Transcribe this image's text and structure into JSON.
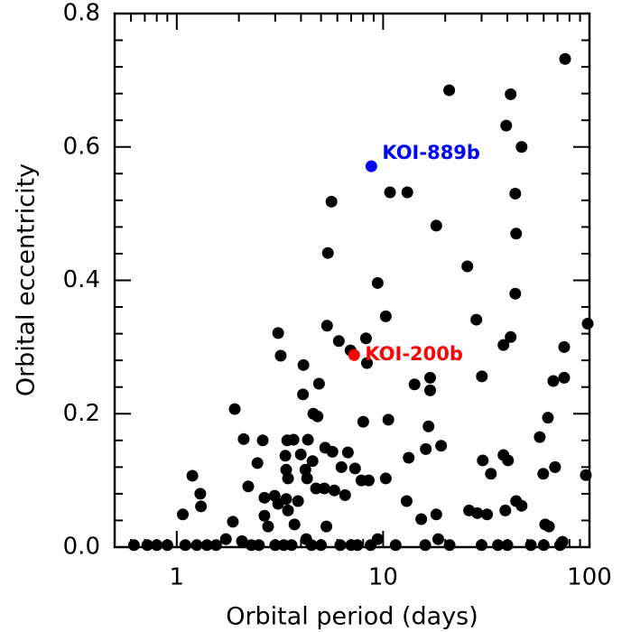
{
  "chart_data": {
    "type": "scatter",
    "xlabel": "Orbital period (days)",
    "ylabel": "Orbital eccentricity",
    "log_x": true,
    "xlim": [
      0.5,
      100
    ],
    "xticks": [
      1,
      10,
      100
    ],
    "ylim": [
      0,
      0.8
    ],
    "yticks": [
      {
        "value": 0,
        "label": "0.0"
      },
      0.2,
      0.4,
      0.6,
      0.8
    ],
    "series": [
      {
        "color": "#000000",
        "x": [
          76.2,
          20.9,
          41.5,
          39.5,
          46.9,
          43.7,
          10.8,
          13.1,
          5.62,
          18.1,
          44.1,
          5.4,
          25.6,
          9.41,
          43.7,
          10.3,
          98,
          28.3,
          3.1,
          5.35,
          41.5,
          38.3,
          8.26,
          6.1,
          6.95,
          8.35,
          3.19,
          75.4,
          30.1,
          75.4,
          16.9,
          16.9,
          14.2,
          66.8,
          4.11,
          4.09,
          4.89,
          4.59,
          4.81,
          1.91,
          8.01,
          10.6,
          62.9,
          16.6,
          57.4,
          16.1,
          19.1,
          2.11,
          2.61,
          3.43,
          3.68,
          4.32,
          5.24,
          5.68,
          6.75,
          6.28,
          7.31,
          3.36,
          3.99,
          4.55,
          4.2,
          3.39,
          3.46,
          4.28,
          4.73,
          5.19,
          5.8,
          6.54,
          7.85,
          8.52,
          1.19,
          1.3,
          1.31,
          1.07,
          2.46,
          2.22,
          1.87,
          2.98,
          2.66,
          3.1,
          2.66,
          2.77,
          3.46,
          3.39,
          3.87,
          3.72,
          5.31,
          4.24,
          2.07,
          1.73,
          10.3,
          13.0,
          15.3,
          18.1,
          18.5,
          13.3,
          30.4,
          38.3,
          40.3,
          33.3,
          59.7,
          68.1,
          96.0,
          31.9,
          26.1,
          28.6,
          44.1,
          39.1,
          46.9,
          61.0,
          63.6,
          9.41,
          74.0,
          0.62,
          0.72,
          0.8,
          0.9,
          1.1,
          1.25,
          1.4,
          1.55,
          2.3,
          2.5,
          3.0,
          3.3,
          3.6,
          4.5,
          5.0,
          6.2,
          7.0,
          7.5,
          8.7,
          11.5,
          16,
          21,
          30,
          36,
          40,
          52,
          60,
          72
        ],
        "values": [
          0.732,
          0.685,
          0.679,
          0.632,
          0.6,
          0.53,
          0.532,
          0.532,
          0.518,
          0.482,
          0.47,
          0.441,
          0.421,
          0.396,
          0.38,
          0.346,
          0.335,
          0.341,
          0.321,
          0.332,
          0.315,
          0.303,
          0.313,
          0.309,
          0.295,
          0.276,
          0.287,
          0.3,
          0.256,
          0.254,
          0.254,
          0.235,
          0.244,
          0.249,
          0.273,
          0.229,
          0.245,
          0.2,
          0.196,
          0.207,
          0.188,
          0.191,
          0.194,
          0.181,
          0.165,
          0.147,
          0.152,
          0.162,
          0.16,
          0.16,
          0.161,
          0.161,
          0.149,
          0.143,
          0.142,
          0.12,
          0.118,
          0.137,
          0.139,
          0.129,
          0.116,
          0.116,
          0.103,
          0.103,
          0.088,
          0.088,
          0.085,
          0.078,
          0.1,
          0.1,
          0.107,
          0.08,
          0.061,
          0.049,
          0.126,
          0.091,
          0.038,
          0.077,
          0.074,
          0.065,
          0.047,
          0.031,
          0.055,
          0.072,
          0.069,
          0.034,
          0.031,
          0.012,
          0.009,
          0.012,
          0.103,
          0.069,
          0.042,
          0.049,
          0.012,
          0.134,
          0.13,
          0.138,
          0.13,
          0.11,
          0.11,
          0.12,
          0.108,
          0.049,
          0.055,
          0.051,
          0.069,
          0.055,
          0.062,
          0.034,
          0.031,
          0.012,
          0.008,
          0.003,
          0.003,
          0.003,
          0.003,
          0.003,
          0.003,
          0.003,
          0.003,
          0.003,
          0.003,
          0.003,
          0.003,
          0.003,
          0.003,
          0.003,
          0.003,
          0.003,
          0.003,
          0.003,
          0.003,
          0.003,
          0.003,
          0.003,
          0.003,
          0.003,
          0.003,
          0.003,
          0.003
        ]
      },
      {
        "name": "KOI-889b",
        "color": "#0000ff",
        "x": [
          8.77
        ],
        "values": [
          0.571
        ]
      },
      {
        "name": "KOI-200b",
        "color": "#ff0000",
        "x": [
          7.24
        ],
        "values": [
          0.288
        ]
      }
    ]
  }
}
